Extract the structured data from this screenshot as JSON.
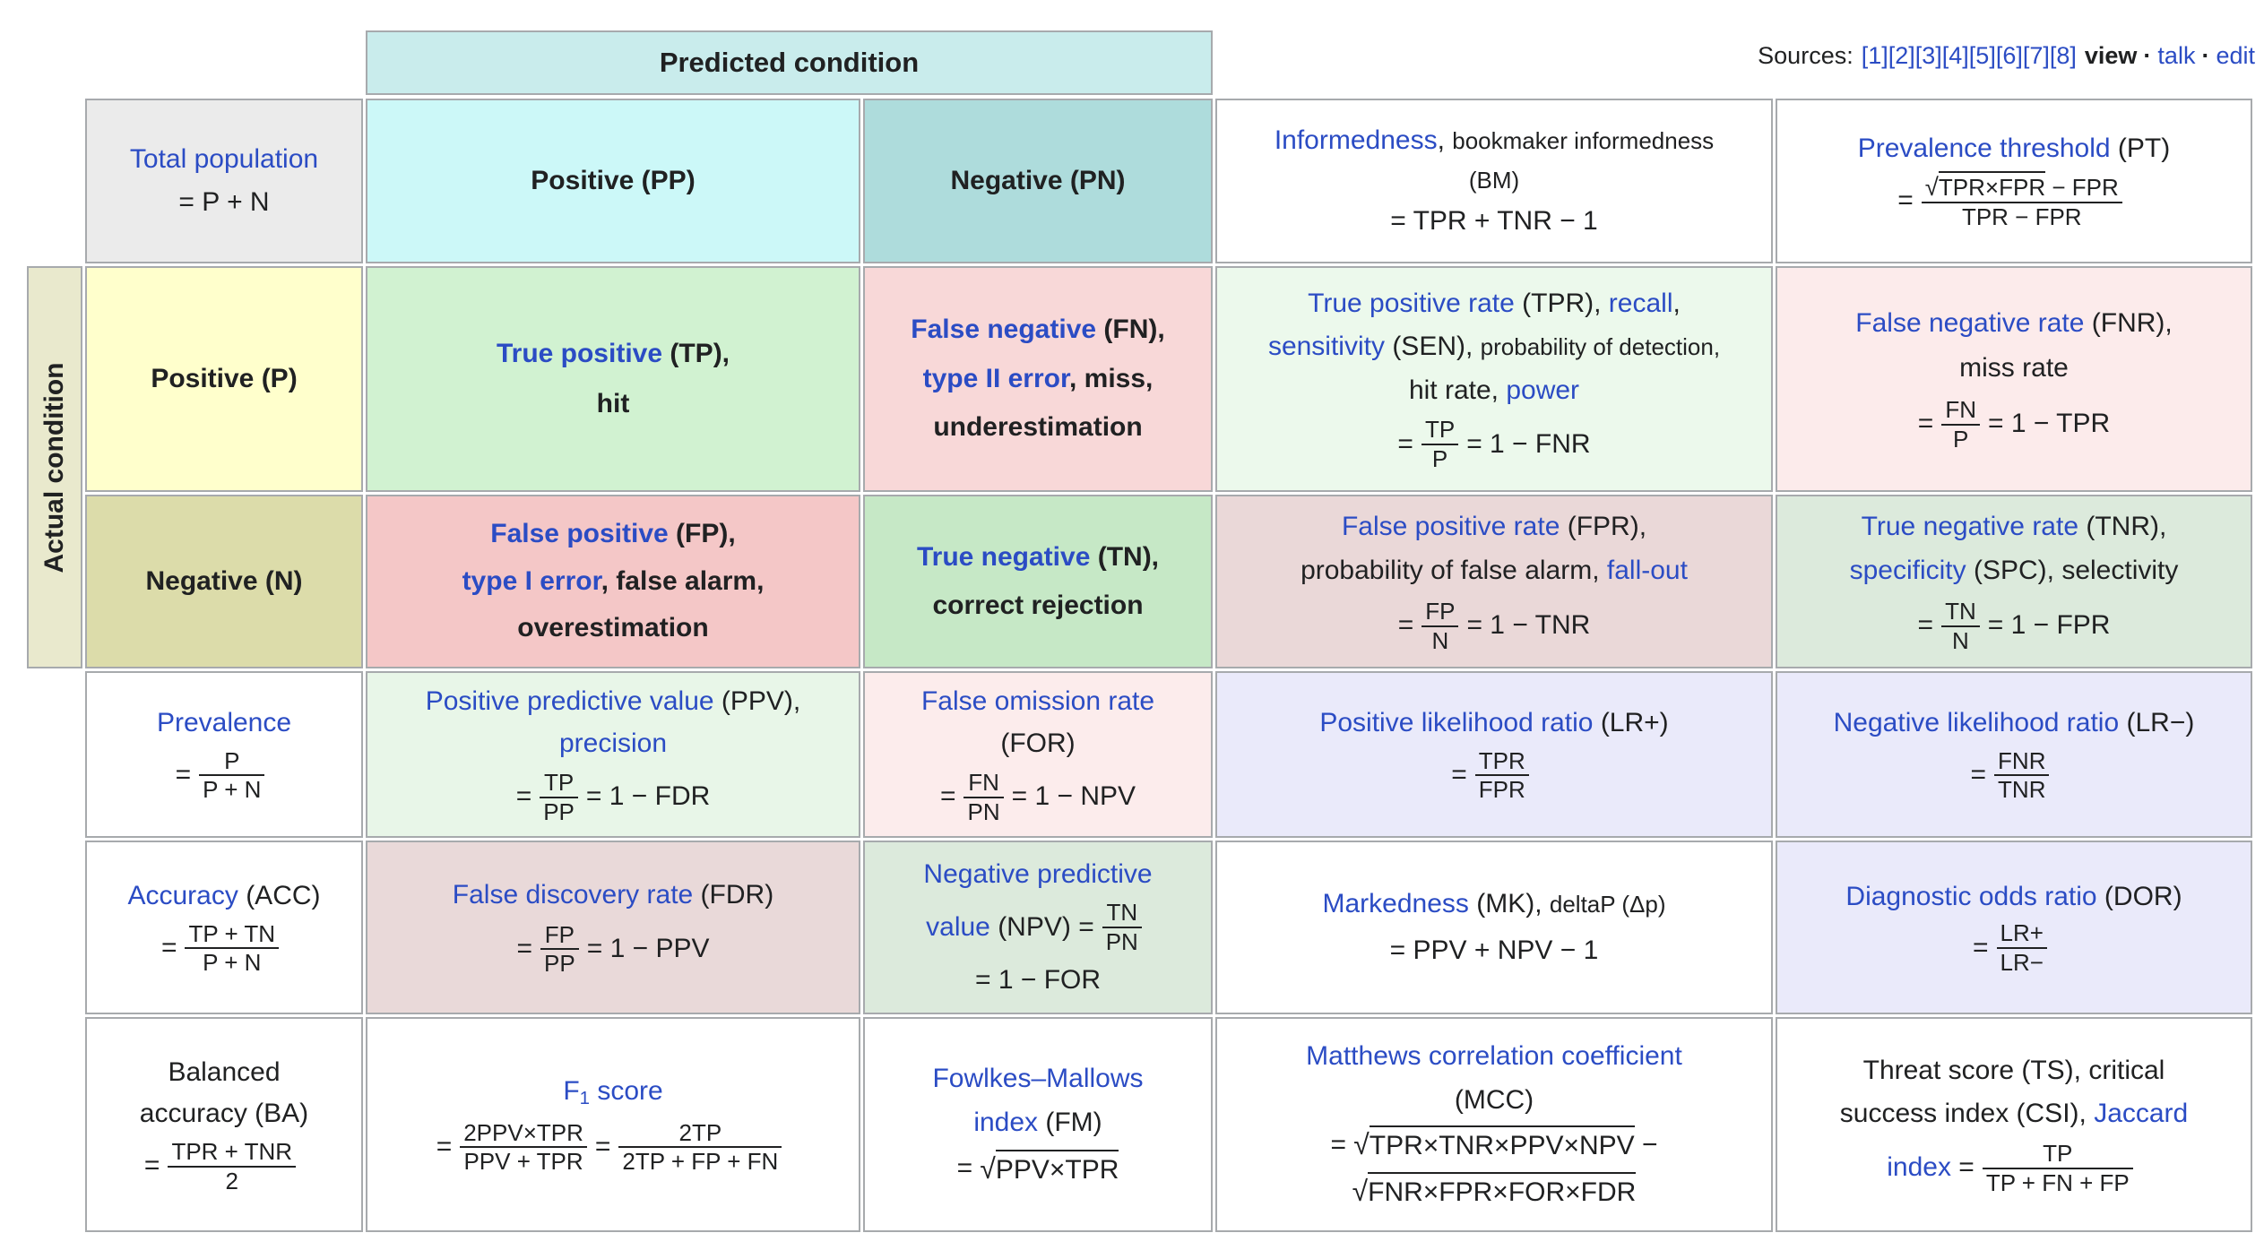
{
  "colors": {
    "link_blue": "#2b4cc4",
    "border_grey": "#a7aaad",
    "text_black": "#202122",
    "predicted_header_bg": "#c9ecec",
    "pp_bg": "#ccf8f8",
    "pn_bg": "#aedcdc",
    "total_population_bg": "#ebebeb",
    "actual_sidebar_bg": "#e9e9cd",
    "p_bg": "#ffffcc",
    "n_bg": "#dcdcaa",
    "tp_bg": "#d1f2d1",
    "fn_bg": "#f8d8d8",
    "fp_bg": "#f4c7c7",
    "tn_bg": "#c6e8c6",
    "tpr_bg": "#ecf9ec",
    "fnr_bg": "#fcebeb",
    "fpr_bg": "#ead8d8",
    "tnr_bg": "#dceadc",
    "ppv_bg": "#e8f6e8",
    "for_bg": "#fcecec",
    "fdr_bg": "#e9d9d9",
    "npv_bg": "#dceadc",
    "lavender_bg": "#eaeafa",
    "white_bg": "#ffffff"
  },
  "sources": {
    "label": "Sources:",
    "refs": "[1][2][3][4][5][6][7][8]",
    "view": "view",
    "dot1": "·",
    "talk": "talk",
    "dot2": "·",
    "edit": "edit"
  },
  "axes": {
    "predicted": "Predicted condition",
    "actual": "Actual condition"
  },
  "cells": {
    "total_population": {
      "link": "Total population",
      "formula": "= P + N"
    },
    "pp": {
      "label": "Positive (PP)"
    },
    "pn": {
      "label": "Negative (PN)"
    },
    "informedness": {
      "link": "Informedness",
      "comma": ", ",
      "alt": "bookmaker informedness",
      "abbr": "(BM)",
      "formula": "= TPR + TNR − 1"
    },
    "pt": {
      "link": "Prevalence threshold",
      "abbr": " (PT)",
      "eq": "=",
      "sqrt": "√",
      "num_ovl": "TPR×FPR",
      "num_rest": " − FPR",
      "den": "TPR − FPR"
    },
    "actual_p": {
      "label": "Positive (P)"
    },
    "actual_n": {
      "label": "Negative (N)"
    },
    "tp": {
      "link": "True positive",
      "abbr": " (TP),",
      "sub": "hit"
    },
    "fn": {
      "link": "False negative",
      "abbr": " (FN),",
      "l2link": "type II error",
      "l2rest": ", miss,",
      "l3": "underestimation"
    },
    "fp": {
      "link": "False positive",
      "abbr": " (FP),",
      "l2link": "type I error",
      "l2rest": ", false alarm,",
      "l3": "overestimation"
    },
    "tn": {
      "link": "True negative",
      "abbr": " (TN),",
      "sub": "correct rejection"
    },
    "tpr": {
      "l1link": "True positive rate",
      "l1mid": " (TPR), ",
      "l1link2": "recall",
      "l1end": ",",
      "l2link": "sensitivity",
      "l2mid": " (SEN), ",
      "l2small": "probability of detection,",
      "l3": "hit rate, ",
      "l3link": "power",
      "eq": "=",
      "num": "TP",
      "den": "P",
      "eq2": "= 1 − FNR"
    },
    "fnr": {
      "link": "False negative rate",
      "abbr": " (FNR),",
      "sub": "miss rate",
      "eq": "=",
      "num": "FN",
      "den": "P",
      "eq2": "= 1 − TPR"
    },
    "fpr": {
      "link": "False positive rate",
      "abbr": " (FPR),",
      "l2": "probability of false alarm, ",
      "l2link": "fall-out",
      "eq": "=",
      "num": "FP",
      "den": "N",
      "eq2": "= 1 − TNR"
    },
    "tnr": {
      "link": "True negative rate",
      "abbr": " (TNR),",
      "l2link": "specificity",
      "l2rest": " (SPC), selectivity",
      "eq": "=",
      "num": "TN",
      "den": "N",
      "eq2": "= 1 − FPR"
    },
    "prevalence": {
      "link": "Prevalence",
      "eq": "=",
      "num": "P",
      "den": "P + N"
    },
    "ppv": {
      "link": "Positive predictive value",
      "abbr": " (PPV),",
      "l2link": "precision",
      "eq": "=",
      "num": "TP",
      "den": "PP",
      "eq2": "= 1 − FDR"
    },
    "for": {
      "link": "False omission rate",
      "abbr": "(FOR)",
      "eq": "=",
      "num": "FN",
      "den": "PN",
      "eq2": "= 1 − NPV"
    },
    "lr_plus": {
      "link": "Positive likelihood ratio",
      "abbr": " (LR+)",
      "eq": "=",
      "num": "TPR",
      "den": "FPR"
    },
    "lr_minus": {
      "link": "Negative likelihood ratio",
      "abbr": " (LR−)",
      "eq": "=",
      "num": "FNR",
      "den": "TNR"
    },
    "accuracy": {
      "link": "Accuracy",
      "abbr": " (ACC)",
      "eq": "=",
      "num": "TP + TN",
      "den": "P + N"
    },
    "fdr": {
      "link": "False discovery rate",
      "abbr": " (FDR)",
      "eq": "=",
      "num": "FP",
      "den": "PP",
      "eq2": "= 1 − PPV"
    },
    "npv": {
      "l1link": "Negative predictive",
      "l2link": "value",
      "l2mid": " (NPV) =",
      "num": "TN",
      "den": "PN",
      "l3": "= 1 − FOR"
    },
    "mk": {
      "link": "Markedness",
      "abbr": " (MK), ",
      "small": "deltaP (Δp)",
      "formula": "= PPV + NPV − 1"
    },
    "dor": {
      "link": "Diagnostic odds ratio",
      "abbr": " (DOR)",
      "eq": "=",
      "num": "LR+",
      "den": "LR−"
    },
    "ba": {
      "l1": "Balanced",
      "l2": "accuracy (BA)",
      "eq": "=",
      "num": "TPR + TNR",
      "den": "2"
    },
    "f1": {
      "linkf": "F",
      "sub": "1",
      "linkrest": " score",
      "eq": "=",
      "num1": "2PPV×TPR",
      "den1": "PPV + TPR",
      "eq2": "=",
      "num2": "2TP",
      "den2": "2TP + FP + FN"
    },
    "fm": {
      "l1link": "Fowlkes–Mallows",
      "l2link": "index",
      "l2rest": " (FM)",
      "eq": "= ",
      "sqrt": "√",
      "ovl": "PPV×TPR"
    },
    "mcc": {
      "link": "Matthews correlation coefficient",
      "abbr": "(MCC)",
      "eq": "= ",
      "sqrt1": "√",
      "ovl1": "TPR×TNR×PPV×NPV",
      "minus": " −",
      "sqrt2": "√",
      "ovl2": "FNR×FPR×FOR×FDR"
    },
    "ts": {
      "l1": "Threat score (TS), critical",
      "l2": "success index (CSI), ",
      "l2link": "Jaccard",
      "l3link": "index",
      "l3mid": " =",
      "num": "TP",
      "den": "TP + FN + FP"
    }
  }
}
